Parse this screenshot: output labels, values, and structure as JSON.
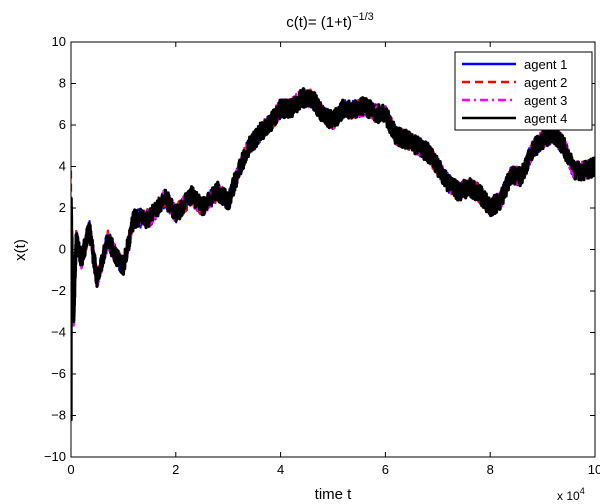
{
  "chart_data": {
    "type": "line",
    "title_prefix": "c(t)=  (1+t)",
    "title_exponent": "−1/3",
    "xlabel": "time t",
    "ylabel": "x(t)",
    "x_scale_base": "x 10",
    "x_scale_exponent": "4",
    "xlim": [
      0,
      10
    ],
    "ylim": [
      -10,
      10
    ],
    "xticks": [
      "0",
      "2",
      "4",
      "6",
      "8",
      "10"
    ],
    "yticks": [
      "−10",
      "−8",
      "−6",
      "−4",
      "−2",
      "0",
      "2",
      "4",
      "6",
      "8",
      "10"
    ],
    "grid": false,
    "legend_position": "top-right",
    "series": [
      {
        "name": "agent 1",
        "color": "#0000ff",
        "dash": "solid"
      },
      {
        "name": "agent 2",
        "color": "#ff0000",
        "dash": "dashed"
      },
      {
        "name": "agent 3",
        "color": "#ff00ff",
        "dash": "dashdot"
      },
      {
        "name": "agent 4",
        "color": "#000000",
        "dash": "solid"
      }
    ],
    "trajectory": {
      "x": [
        0,
        0.05,
        0.1,
        0.2,
        0.35,
        0.5,
        0.7,
        0.9,
        1.0,
        1.2,
        1.5,
        1.8,
        2.0,
        2.3,
        2.5,
        2.8,
        3.0,
        3.2,
        3.4,
        3.6,
        3.8,
        4.0,
        4.2,
        4.4,
        4.6,
        4.8,
        5.0,
        5.2,
        5.4,
        5.6,
        5.8,
        6.0,
        6.2,
        6.4,
        6.6,
        6.8,
        7.0,
        7.2,
        7.4,
        7.6,
        7.8,
        8.0,
        8.2,
        8.4,
        8.6,
        8.8,
        9.0,
        9.2,
        9.4,
        9.6,
        9.8,
        10.0
      ],
      "y": [
        2.5,
        -3.5,
        0.5,
        -0.5,
        1.0,
        -1.5,
        0.5,
        -0.5,
        -0.8,
        1.5,
        1.5,
        2.5,
        1.7,
        2.6,
        2.0,
        2.8,
        2.3,
        3.8,
        5.0,
        5.6,
        6.1,
        6.8,
        6.8,
        7.3,
        7.3,
        6.5,
        6.2,
        6.8,
        6.7,
        6.9,
        6.6,
        6.5,
        5.5,
        5.3,
        5.0,
        4.7,
        4.0,
        3.2,
        2.8,
        3.0,
        2.7,
        2.0,
        2.4,
        3.6,
        3.5,
        4.8,
        5.3,
        5.6,
        5.0,
        3.8,
        3.8,
        4.0
      ]
    }
  }
}
